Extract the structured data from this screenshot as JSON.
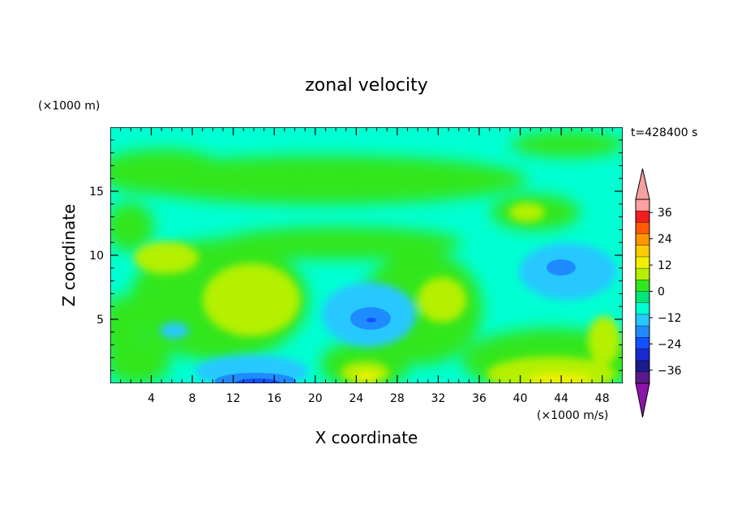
{
  "chart_data": {
    "type": "heatmap",
    "title": "zonal velocity",
    "xlabel": "X coordinate",
    "ylabel": "Z coordinate",
    "y_unit_label": "(×1000 m)",
    "colorbar_unit_label": "(×1000 m/s)",
    "time_label": "t=428400 s",
    "xlim": [
      0,
      50
    ],
    "ylim": [
      0,
      20
    ],
    "x_ticks": [
      "4",
      "8",
      "12",
      "16",
      "20",
      "24",
      "28",
      "32",
      "36",
      "40",
      "44",
      "48"
    ],
    "y_ticks": [
      "5",
      "10",
      "15"
    ],
    "colorbar": {
      "ticks": [
        "36",
        "24",
        "12",
        "0",
        "−12",
        "−24",
        "−36"
      ],
      "levels": [
        -42,
        -36,
        -30,
        -24,
        -18,
        -12,
        -6,
        0,
        6,
        12,
        18,
        24,
        30,
        36,
        42
      ],
      "colors": [
        "#5a1a8c",
        "#1a1a8c",
        "#1a2ad0",
        "#1450ff",
        "#1e8cff",
        "#28c8ff",
        "#00ffd2",
        "#00e678",
        "#32e61e",
        "#b4f000",
        "#f0f000",
        "#ffcc00",
        "#ff9600",
        "#ff5a00",
        "#f01e1e",
        "#ffa0a0"
      ],
      "under_color": "#8c14aa",
      "over_color": "#f5a0a0"
    },
    "features": [
      {
        "x": 25.5,
        "z": 5.0,
        "value": -20,
        "kind": "minimum"
      },
      {
        "x": 15.0,
        "z": 0.7,
        "value": -24,
        "kind": "minimum"
      },
      {
        "x": 43.5,
        "z": 9.0,
        "value": -14,
        "kind": "minimum"
      },
      {
        "x": 13.0,
        "z": 6.5,
        "value": 9,
        "kind": "maximum"
      },
      {
        "x": 41.0,
        "z": 0.8,
        "value": 10,
        "kind": "maximum"
      },
      {
        "x": 24.0,
        "z": 1.0,
        "value": 9,
        "kind": "maximum"
      }
    ]
  }
}
